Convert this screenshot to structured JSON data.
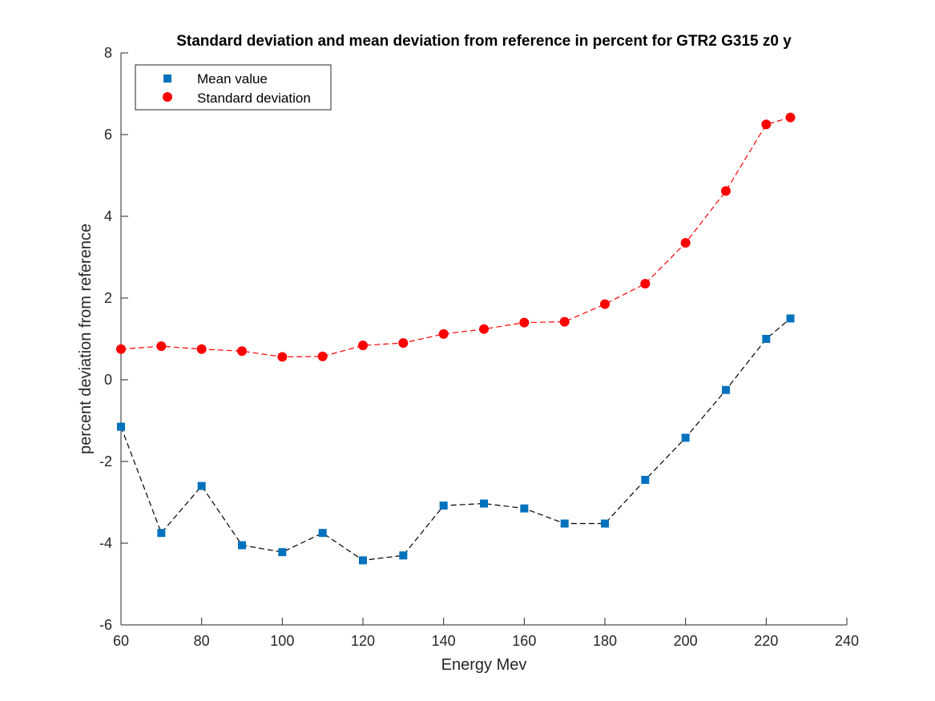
{
  "chart_data": {
    "type": "line",
    "title": "Standard deviation and mean deviation from reference in percent for GTR2 G315 z0 y",
    "xlabel": "Energy Mev",
    "ylabel": "percent deviation from reference",
    "xlim": [
      60,
      240
    ],
    "ylim": [
      -6,
      8
    ],
    "xticks": [
      60,
      80,
      100,
      120,
      140,
      160,
      180,
      200,
      220,
      240
    ],
    "yticks": [
      -6,
      -4,
      -2,
      0,
      2,
      4,
      6,
      8
    ],
    "grid": false,
    "legend_position": "top-left",
    "x": [
      60,
      70,
      80,
      90,
      100,
      110,
      120,
      130,
      140,
      150,
      160,
      170,
      180,
      190,
      200,
      210,
      220,
      226
    ],
    "series": [
      {
        "name": "Mean value",
        "marker": "square",
        "marker_color": "#0072BD",
        "line_color": "#000000",
        "line_style": "dashed",
        "values": [
          -1.15,
          -3.75,
          -2.6,
          -4.05,
          -4.22,
          -3.75,
          -4.42,
          -4.3,
          -3.08,
          -3.03,
          -3.15,
          -3.52,
          -3.52,
          -2.45,
          -1.42,
          -0.25,
          1.0,
          1.5
        ]
      },
      {
        "name": "Standard deviation",
        "marker": "circle",
        "marker_color": "#FF0000",
        "line_color": "#FF0000",
        "line_style": "dashed",
        "values": [
          0.75,
          0.82,
          0.75,
          0.7,
          0.56,
          0.57,
          0.84,
          0.9,
          1.12,
          1.24,
          1.4,
          1.42,
          1.85,
          2.35,
          3.35,
          4.62,
          6.25,
          6.42
        ]
      }
    ]
  }
}
